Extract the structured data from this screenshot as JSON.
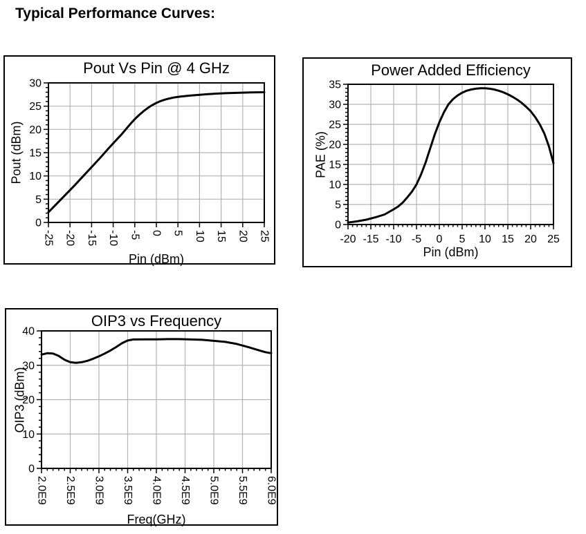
{
  "page": {
    "title": "Typical Performance Curves:"
  },
  "colors": {
    "curve": "#000000",
    "grid": "#b4b4b4",
    "frame": "#000000",
    "text": "#000000",
    "background": "#ffffff"
  },
  "chart_data": [
    {
      "type": "line",
      "title": "Pout Vs Pin @ 4 GHz",
      "xlabel": "Pin (dBm)",
      "ylabel": "Pout (dBm)",
      "xlim": [
        -25,
        25
      ],
      "ylim": [
        0,
        30
      ],
      "x_major_ticks": [
        -25,
        -20,
        -15,
        -10,
        -5,
        0,
        5,
        10,
        15,
        20,
        25
      ],
      "x_tick_labels": [
        "-25",
        "-20",
        "-15",
        "-10",
        "-5",
        "0",
        "5",
        "10",
        "15",
        "20",
        "25"
      ],
      "x_minor_step": null,
      "x_tick_rotated": true,
      "y_major_ticks": [
        0,
        5,
        10,
        15,
        20,
        25,
        30
      ],
      "y_tick_labels": [
        "0",
        "5",
        "10",
        "15",
        "20",
        "25",
        "30"
      ],
      "y_minor_step": 1,
      "grid": true,
      "legend": "none",
      "series": [
        {
          "name": "Pout",
          "points": [
            [
              -25,
              2.2
            ],
            [
              -23,
              4.1
            ],
            [
              -21,
              6.0
            ],
            [
              -19,
              7.9
            ],
            [
              -17,
              9.9
            ],
            [
              -15,
              11.9
            ],
            [
              -13,
              13.9
            ],
            [
              -11,
              16.0
            ],
            [
              -10,
              17.0
            ],
            [
              -9,
              18.0
            ],
            [
              -8,
              19.0
            ],
            [
              -7,
              20.1
            ],
            [
              -6,
              21.2
            ],
            [
              -5,
              22.2
            ],
            [
              -4,
              23.1
            ],
            [
              -3,
              23.9
            ],
            [
              -2,
              24.6
            ],
            [
              -1,
              25.2
            ],
            [
              0,
              25.7
            ],
            [
              1,
              26.1
            ],
            [
              2,
              26.4
            ],
            [
              3,
              26.65
            ],
            [
              4,
              26.85
            ],
            [
              5,
              27.0
            ],
            [
              6,
              27.1
            ],
            [
              7,
              27.2
            ],
            [
              8,
              27.3
            ],
            [
              10,
              27.45
            ],
            [
              12,
              27.6
            ],
            [
              14,
              27.7
            ],
            [
              16,
              27.78
            ],
            [
              18,
              27.85
            ],
            [
              20,
              27.9
            ],
            [
              22,
              27.95
            ],
            [
              25,
              28.0
            ]
          ]
        }
      ]
    },
    {
      "type": "line",
      "title": "Power Added Efficiency",
      "xlabel": "Pin (dBm)",
      "ylabel": "PAE (%)",
      "xlim": [
        -20,
        25
      ],
      "ylim": [
        0,
        35
      ],
      "x_major_ticks": [
        -20,
        -15,
        -10,
        -5,
        0,
        5,
        10,
        15,
        20,
        25
      ],
      "x_tick_labels": [
        "-20",
        "-15",
        "-10",
        "-5",
        "0",
        "5",
        "10",
        "15",
        "20",
        "25"
      ],
      "x_minor_step": 1,
      "x_tick_rotated": false,
      "y_major_ticks": [
        0,
        5,
        10,
        15,
        20,
        25,
        30,
        35
      ],
      "y_tick_labels": [
        "0",
        "5",
        "10",
        "15",
        "20",
        "25",
        "30",
        "35"
      ],
      "y_minor_step": 1,
      "grid": true,
      "legend": "none",
      "series": [
        {
          "name": "PAE",
          "points": [
            [
              -20,
              0.5
            ],
            [
              -18,
              0.8
            ],
            [
              -16,
              1.2
            ],
            [
              -14,
              1.8
            ],
            [
              -12,
              2.5
            ],
            [
              -10,
              3.8
            ],
            [
              -9,
              4.5
            ],
            [
              -8,
              5.5
            ],
            [
              -7,
              6.8
            ],
            [
              -6,
              8.2
            ],
            [
              -5,
              10.0
            ],
            [
              -4,
              12.5
            ],
            [
              -3,
              15.5
            ],
            [
              -2,
              19.0
            ],
            [
              -1,
              22.5
            ],
            [
              0,
              25.5
            ],
            [
              1,
              28.0
            ],
            [
              2,
              30.0
            ],
            [
              3,
              31.3
            ],
            [
              4,
              32.2
            ],
            [
              5,
              32.9
            ],
            [
              6,
              33.4
            ],
            [
              7,
              33.7
            ],
            [
              8,
              33.9
            ],
            [
              9,
              34.0
            ],
            [
              10,
              34.0
            ],
            [
              11,
              33.9
            ],
            [
              12,
              33.7
            ],
            [
              13,
              33.4
            ],
            [
              14,
              33.0
            ],
            [
              15,
              32.5
            ],
            [
              16,
              31.9
            ],
            [
              17,
              31.2
            ],
            [
              18,
              30.4
            ],
            [
              19,
              29.4
            ],
            [
              20,
              28.3
            ],
            [
              21,
              26.8
            ],
            [
              22,
              25.0
            ],
            [
              23,
              22.7
            ],
            [
              24,
              19.5
            ],
            [
              25,
              15.3
            ]
          ]
        }
      ]
    },
    {
      "type": "line",
      "title": "OIP3 vs Frequency",
      "xlabel": "Freq(GHz)",
      "ylabel": "OIP3 (dBm)",
      "xlim": [
        2000000000.0,
        6000000000.0
      ],
      "ylim": [
        0,
        40
      ],
      "x_major_ticks": [
        2000000000.0,
        2500000000.0,
        3000000000.0,
        3500000000.0,
        4000000000.0,
        4500000000.0,
        5000000000.0,
        5500000000.0,
        6000000000.0
      ],
      "x_tick_labels": [
        "2.0E9",
        "2.5E9",
        "3.0E9",
        "3.5E9",
        "4.0E9",
        "4.5E9",
        "5.0E9",
        "5.5E9",
        "6.0E9"
      ],
      "x_minor_step": 100000000.0,
      "x_tick_rotated": true,
      "y_major_ticks": [
        0,
        10,
        20,
        30,
        40
      ],
      "y_tick_labels": [
        "0",
        "10",
        "20",
        "30",
        "40"
      ],
      "y_minor_step": 2,
      "grid": true,
      "legend": "none",
      "series": [
        {
          "name": "OIP3",
          "points": [
            [
              2000000000.0,
              33.1
            ],
            [
              2100000000.0,
              33.5
            ],
            [
              2200000000.0,
              33.4
            ],
            [
              2300000000.0,
              32.7
            ],
            [
              2400000000.0,
              31.6
            ],
            [
              2500000000.0,
              30.9
            ],
            [
              2600000000.0,
              30.7
            ],
            [
              2700000000.0,
              30.9
            ],
            [
              2800000000.0,
              31.3
            ],
            [
              2900000000.0,
              31.9
            ],
            [
              3000000000.0,
              32.6
            ],
            [
              3100000000.0,
              33.4
            ],
            [
              3200000000.0,
              34.3
            ],
            [
              3300000000.0,
              35.3
            ],
            [
              3400000000.0,
              36.4
            ],
            [
              3500000000.0,
              37.2
            ],
            [
              3600000000.0,
              37.5
            ],
            [
              3800000000.0,
              37.55
            ],
            [
              4000000000.0,
              37.55
            ],
            [
              4200000000.0,
              37.6
            ],
            [
              4400000000.0,
              37.6
            ],
            [
              4600000000.0,
              37.5
            ],
            [
              4800000000.0,
              37.4
            ],
            [
              5000000000.0,
              37.1
            ],
            [
              5200000000.0,
              36.8
            ],
            [
              5400000000.0,
              36.2
            ],
            [
              5600000000.0,
              35.3
            ],
            [
              5800000000.0,
              34.3
            ],
            [
              5900000000.0,
              33.8
            ],
            [
              6000000000.0,
              33.5
            ]
          ]
        }
      ]
    }
  ]
}
